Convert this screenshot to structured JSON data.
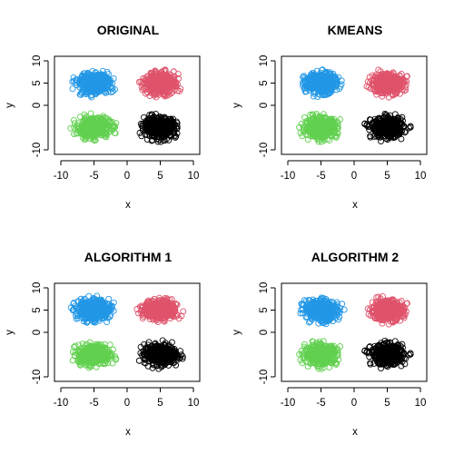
{
  "chart_data": [
    {
      "type": "scatter",
      "title": "ORIGINAL",
      "xlabel": "x",
      "ylabel": "y",
      "xlim": [
        -10,
        10
      ],
      "ylim": [
        -10,
        10
      ],
      "xticks": [
        "-10",
        "-5",
        "0",
        "5",
        "10"
      ],
      "yticks": [
        "-10",
        "0",
        "5",
        "10"
      ],
      "grid": false,
      "marker": "open-circle",
      "series": [
        {
          "color": "#2297E6",
          "center": [
            -5,
            5
          ],
          "spread": [
            2.2,
            2.0
          ]
        },
        {
          "color": "#DF536B",
          "center": [
            5,
            5
          ],
          "spread": [
            2.2,
            2.0
          ]
        },
        {
          "color": "#61D04F",
          "center": [
            -5,
            -5
          ],
          "spread": [
            2.2,
            2.0
          ]
        },
        {
          "color": "#000000",
          "center": [
            5,
            -5
          ],
          "spread": [
            2.2,
            2.0
          ]
        }
      ]
    },
    {
      "type": "scatter",
      "title": "KMEANS",
      "xlabel": "x",
      "ylabel": "y",
      "xlim": [
        -10,
        10
      ],
      "ylim": [
        -10,
        10
      ],
      "xticks": [
        "-10",
        "-5",
        "0",
        "5",
        "10"
      ],
      "yticks": [
        "-10",
        "0",
        "5",
        "10"
      ],
      "grid": false,
      "marker": "open-circle",
      "series": [
        {
          "color": "#2297E6",
          "center": [
            -5,
            5
          ],
          "spread": [
            2.2,
            2.0
          ]
        },
        {
          "color": "#DF536B",
          "center": [
            5,
            5
          ],
          "spread": [
            2.2,
            2.0
          ]
        },
        {
          "color": "#61D04F",
          "center": [
            -5,
            -5
          ],
          "spread": [
            2.2,
            2.0
          ]
        },
        {
          "color": "#000000",
          "center": [
            5,
            -5
          ],
          "spread": [
            2.2,
            2.0
          ]
        }
      ]
    },
    {
      "type": "scatter",
      "title": "ALGORITHM 1",
      "xlabel": "x",
      "ylabel": "y",
      "xlim": [
        -10,
        10
      ],
      "ylim": [
        -10,
        10
      ],
      "xticks": [
        "-10",
        "-5",
        "0",
        "5",
        "10"
      ],
      "yticks": [
        "-10",
        "0",
        "5",
        "10"
      ],
      "grid": false,
      "marker": "open-circle",
      "series": [
        {
          "color": "#2297E6",
          "center": [
            -5,
            5
          ],
          "spread": [
            2.2,
            2.0
          ]
        },
        {
          "color": "#DF536B",
          "center": [
            5,
            5
          ],
          "spread": [
            2.2,
            2.0
          ]
        },
        {
          "color": "#61D04F",
          "center": [
            -5,
            -5
          ],
          "spread": [
            2.2,
            2.0
          ]
        },
        {
          "color": "#000000",
          "center": [
            5,
            -5
          ],
          "spread": [
            2.2,
            2.0
          ]
        }
      ]
    },
    {
      "type": "scatter",
      "title": "ALGORITHM 2",
      "xlabel": "x",
      "ylabel": "y",
      "xlim": [
        -10,
        10
      ],
      "ylim": [
        -10,
        10
      ],
      "xticks": [
        "-10",
        "-5",
        "0",
        "5",
        "10"
      ],
      "yticks": [
        "-10",
        "0",
        "5",
        "10"
      ],
      "grid": false,
      "marker": "open-circle",
      "series": [
        {
          "color": "#2297E6",
          "center": [
            -5,
            5
          ],
          "spread": [
            2.2,
            2.0
          ]
        },
        {
          "color": "#DF536B",
          "center": [
            5,
            5
          ],
          "spread": [
            2.2,
            2.0
          ]
        },
        {
          "color": "#61D04F",
          "center": [
            -5,
            -5
          ],
          "spread": [
            2.2,
            2.0
          ]
        },
        {
          "color": "#000000",
          "center": [
            5,
            -5
          ],
          "spread": [
            2.2,
            2.0
          ]
        }
      ]
    }
  ]
}
